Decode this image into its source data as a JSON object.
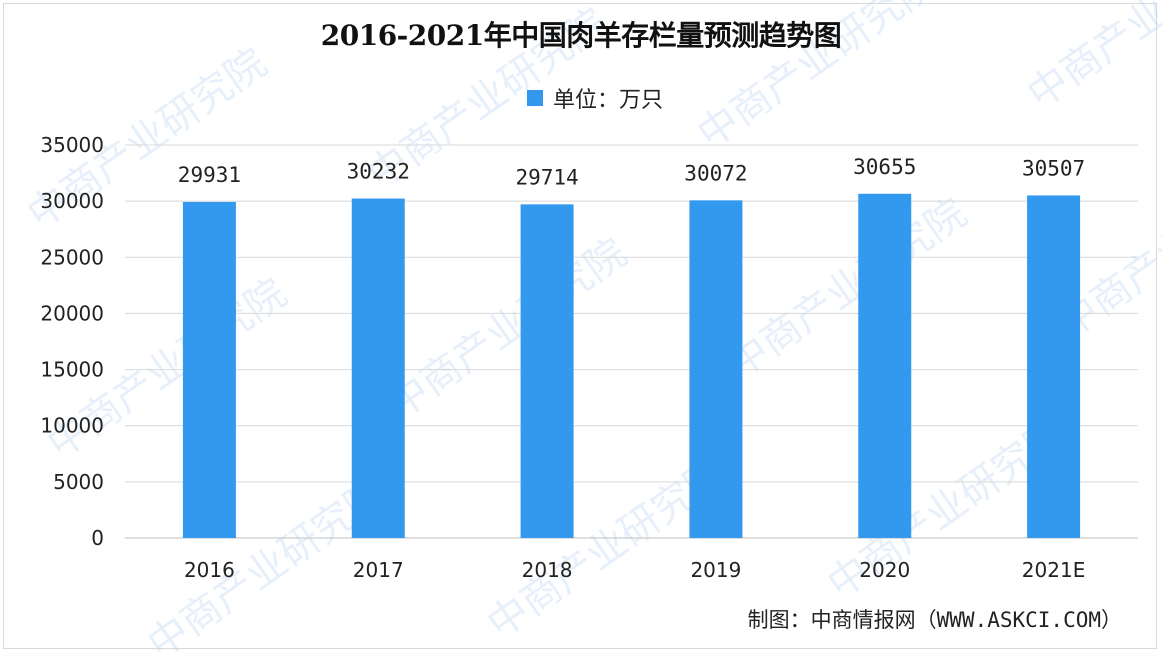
{
  "chart_data": {
    "type": "bar",
    "title": "2016-2021年中国肉羊存栏量预测趋势图",
    "legend": {
      "label": "单位：万只",
      "placement": "top-center"
    },
    "categories": [
      "2016",
      "2017",
      "2018",
      "2019",
      "2020",
      "2021E"
    ],
    "series": [
      {
        "values": [
          29931,
          30232,
          29714,
          30072,
          30655,
          30507
        ]
      }
    ],
    "ylim": [
      0,
      35000
    ],
    "yticks": [
      0,
      5000,
      10000,
      15000,
      20000,
      25000,
      30000,
      35000
    ],
    "grid": true,
    "bar_color": "#3399ee",
    "credit": "制图：中商情报网（WWW.ASKCI.COM）",
    "watermark": "中商产业研究院"
  }
}
